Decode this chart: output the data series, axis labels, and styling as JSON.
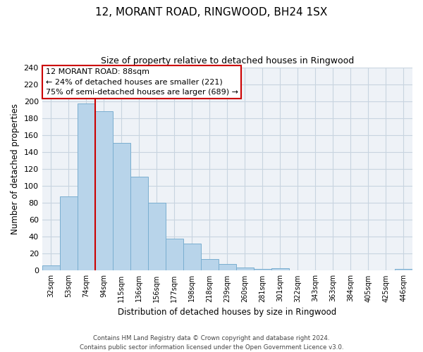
{
  "title": "12, MORANT ROAD, RINGWOOD, BH24 1SX",
  "subtitle": "Size of property relative to detached houses in Ringwood",
  "xlabel": "Distribution of detached houses by size in Ringwood",
  "ylabel": "Number of detached properties",
  "bin_labels": [
    "32sqm",
    "53sqm",
    "74sqm",
    "94sqm",
    "115sqm",
    "136sqm",
    "156sqm",
    "177sqm",
    "198sqm",
    "218sqm",
    "239sqm",
    "260sqm",
    "281sqm",
    "301sqm",
    "322sqm",
    "343sqm",
    "363sqm",
    "384sqm",
    "405sqm",
    "425sqm",
    "446sqm"
  ],
  "bar_heights": [
    6,
    88,
    197,
    188,
    151,
    111,
    80,
    38,
    32,
    14,
    8,
    4,
    2,
    3,
    0,
    0,
    0,
    0,
    0,
    0,
    2
  ],
  "bar_color": "#b8d4ea",
  "bar_edge_color": "#7aaed0",
  "ylim": [
    0,
    240
  ],
  "yticks": [
    0,
    20,
    40,
    60,
    80,
    100,
    120,
    140,
    160,
    180,
    200,
    220,
    240
  ],
  "property_line_x": 2.5,
  "property_line_color": "#cc0000",
  "annotation_title": "12 MORANT ROAD: 88sqm",
  "annotation_line1": "← 24% of detached houses are smaller (221)",
  "annotation_line2": "75% of semi-detached houses are larger (689) →",
  "annotation_box_facecolor": "white",
  "annotation_box_edgecolor": "#cc0000",
  "footer_line1": "Contains HM Land Registry data © Crown copyright and database right 2024.",
  "footer_line2": "Contains public sector information licensed under the Open Government Licence v3.0.",
  "plot_bg_color": "#eef2f7",
  "grid_color": "#c8d4e0"
}
